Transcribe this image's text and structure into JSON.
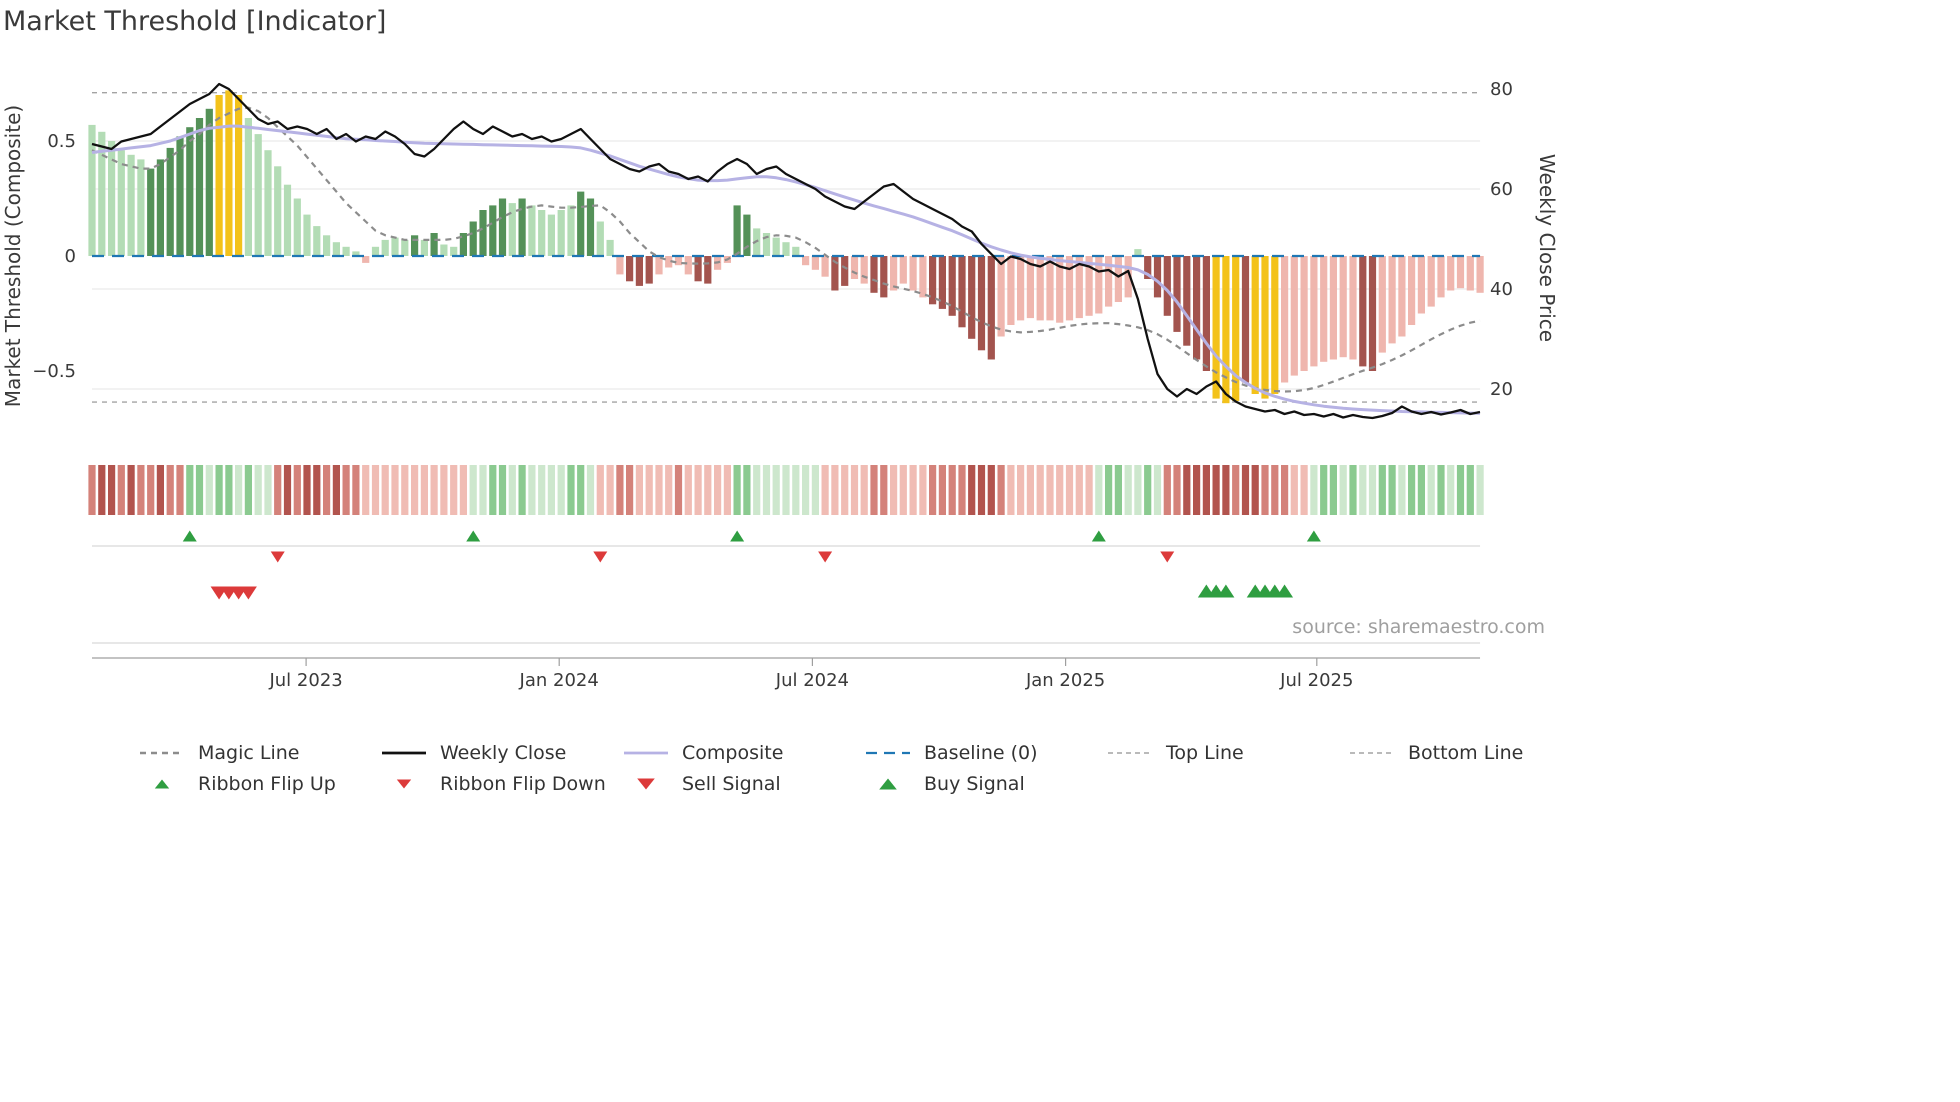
{
  "title": "Market Threshold [Indicator]",
  "source": "source: sharemaestro.com",
  "axes": {
    "left_label": "Market Threshold (Composite)",
    "right_label": "Weekly Close Price",
    "left_ticks": [
      {
        "v": 0.5,
        "label": "0.5"
      },
      {
        "v": 0.0,
        "label": "0"
      },
      {
        "v": -0.5,
        "label": "−0.5"
      }
    ],
    "right_ticks": [
      {
        "v": 80,
        "label": "80"
      },
      {
        "v": 60,
        "label": "60"
      },
      {
        "v": 40,
        "label": "40"
      },
      {
        "v": 20,
        "label": "20"
      }
    ],
    "x_ticks": [
      {
        "week": 21.9,
        "label": "Jul 2023"
      },
      {
        "week": 47.8,
        "label": "Jan 2024"
      },
      {
        "week": 73.7,
        "label": "Jul 2024"
      },
      {
        "week": 99.6,
        "label": "Jan 2025"
      },
      {
        "week": 125.3,
        "label": "Jul 2025"
      }
    ]
  },
  "colors": {
    "bars": {
      "lg": "#b3dcb5",
      "dg": "#549158",
      "au": "#f3c21a",
      "lr": "#efb6ae",
      "dr": "#a3544e"
    },
    "ribbon": {
      "r1": "#f0bcb4",
      "r2": "#d4827a",
      "r3": "#b2544e",
      "g1": "#cde7cd",
      "g2": "#8bca90"
    },
    "close": "#111111",
    "composite": "#b6b2e4",
    "magic": "#8c8c8c",
    "baseline": "#1f77b4",
    "ref_line": "#a3a3a3",
    "grid": "#ebebeb",
    "tri_green": "#2f9e41",
    "tri_red": "#dc3a3a"
  },
  "chart_data": {
    "type": "bar+line",
    "x_unit": "weeks",
    "title": "Market Threshold [Indicator]",
    "left_ylim": [
      -0.8,
      0.82
    ],
    "right_ylim": [
      7,
      84
    ],
    "grid": "horizontal-light",
    "reference_lines": {
      "baseline": 0,
      "top_line": 0.71,
      "bottom_line": -0.635
    },
    "threshold_bars": {
      "values": [
        0.57,
        0.54,
        0.5,
        0.46,
        0.44,
        0.42,
        0.38,
        0.42,
        0.47,
        0.52,
        0.56,
        0.6,
        0.64,
        0.7,
        0.72,
        0.7,
        0.6,
        0.53,
        0.46,
        0.39,
        0.31,
        0.25,
        0.18,
        0.13,
        0.09,
        0.06,
        0.04,
        0.02,
        -0.03,
        0.04,
        0.07,
        0.08,
        0.07,
        0.09,
        0.07,
        0.1,
        0.05,
        0.04,
        0.1,
        0.15,
        0.2,
        0.22,
        0.25,
        0.23,
        0.25,
        0.22,
        0.2,
        0.18,
        0.2,
        0.22,
        0.28,
        0.25,
        0.15,
        0.07,
        -0.08,
        -0.11,
        -0.13,
        -0.12,
        -0.08,
        -0.05,
        -0.04,
        -0.08,
        -0.11,
        -0.12,
        -0.06,
        -0.03,
        0.22,
        0.18,
        0.12,
        0.1,
        0.08,
        0.06,
        0.04,
        -0.04,
        -0.06,
        -0.09,
        -0.15,
        -0.13,
        -0.1,
        -0.12,
        -0.16,
        -0.18,
        -0.15,
        -0.12,
        -0.15,
        -0.18,
        -0.21,
        -0.23,
        -0.26,
        -0.31,
        -0.36,
        -0.41,
        -0.45,
        -0.35,
        -0.3,
        -0.28,
        -0.27,
        -0.28,
        -0.28,
        -0.29,
        -0.28,
        -0.27,
        -0.26,
        -0.25,
        -0.22,
        -0.2,
        -0.18,
        0.03,
        -0.1,
        -0.18,
        -0.26,
        -0.33,
        -0.39,
        -0.45,
        -0.5,
        -0.62,
        -0.64,
        -0.63,
        -0.55,
        -0.6,
        -0.62,
        -0.6,
        -0.55,
        -0.52,
        -0.5,
        -0.48,
        -0.46,
        -0.45,
        -0.44,
        -0.45,
        -0.48,
        -0.5,
        -0.42,
        -0.38,
        -0.35,
        -0.3,
        -0.25,
        -0.22,
        -0.18,
        -0.15,
        -0.14,
        -0.15,
        -0.16
      ],
      "colors": [
        "lg",
        "lg",
        "lg",
        "lg",
        "lg",
        "lg",
        "dg",
        "dg",
        "dg",
        "dg",
        "dg",
        "dg",
        "dg",
        "au",
        "au",
        "au",
        "lg",
        "lg",
        "lg",
        "lg",
        "lg",
        "lg",
        "lg",
        "lg",
        "lg",
        "lg",
        "lg",
        "lg",
        "lr",
        "lg",
        "lg",
        "lg",
        "lg",
        "dg",
        "lg",
        "dg",
        "lg",
        "lg",
        "dg",
        "dg",
        "dg",
        "dg",
        "dg",
        "lg",
        "dg",
        "lg",
        "lg",
        "lg",
        "lg",
        "lg",
        "dg",
        "dg",
        "lg",
        "lg",
        "lr",
        "dr",
        "dr",
        "dr",
        "lr",
        "lr",
        "lr",
        "lr",
        "dr",
        "dr",
        "lr",
        "lr",
        "dg",
        "dg",
        "lg",
        "lg",
        "lg",
        "lg",
        "lg",
        "lr",
        "lr",
        "lr",
        "dr",
        "dr",
        "lr",
        "lr",
        "dr",
        "dr",
        "lr",
        "lr",
        "lr",
        "lr",
        "dr",
        "dr",
        "dr",
        "dr",
        "dr",
        "dr",
        "dr",
        "lr",
        "lr",
        "lr",
        "lr",
        "lr",
        "lr",
        "lr",
        "lr",
        "lr",
        "lr",
        "lr",
        "lr",
        "lr",
        "lr",
        "lg",
        "dr",
        "dr",
        "dr",
        "dr",
        "dr",
        "dr",
        "dr",
        "au",
        "au",
        "au",
        "dr",
        "au",
        "au",
        "au",
        "lr",
        "lr",
        "lr",
        "lr",
        "lr",
        "lr",
        "lr",
        "lr",
        "dr",
        "dr",
        "lr",
        "lr",
        "lr",
        "lr",
        "lr",
        "lr",
        "lr",
        "lr",
        "lr",
        "lr",
        "lr"
      ]
    },
    "weekly_close": [
      69,
      68.5,
      68,
      69.5,
      70,
      70.5,
      71,
      72.5,
      74,
      75.5,
      77,
      78,
      79,
      81,
      80,
      78,
      76,
      74,
      73,
      73.5,
      72,
      72.5,
      72,
      71,
      72,
      70,
      71,
      69.5,
      70.5,
      70,
      71.5,
      70.5,
      69,
      67,
      66.5,
      68,
      70,
      72,
      73.5,
      72,
      71,
      72.5,
      71.5,
      70.5,
      71,
      70,
      70.5,
      69.5,
      70,
      71,
      72,
      70,
      68,
      66,
      65,
      64,
      63.5,
      64.5,
      65,
      63.5,
      63,
      62,
      62.5,
      61.5,
      63.5,
      65,
      66,
      65,
      63,
      64,
      64.5,
      63,
      62,
      61,
      60,
      58.5,
      57.5,
      56.5,
      56,
      57.5,
      59,
      60.5,
      61,
      59.5,
      58,
      57,
      56,
      55,
      54,
      52.5,
      51.5,
      49,
      47,
      45,
      46.5,
      46,
      45,
      44.5,
      45.5,
      44.5,
      44,
      45,
      44.5,
      43.5,
      43.8,
      42.5,
      43.6,
      38,
      30,
      23,
      20,
      18.5,
      20,
      19,
      20.5,
      21.5,
      19,
      17.5,
      16.5,
      16,
      15.5,
      15.8,
      15,
      15.5,
      14.8,
      15,
      14.5,
      15,
      14.3,
      14.8,
      14.4,
      14.2,
      14.6,
      15.2,
      16.5,
      15.5,
      15,
      15.4,
      14.9,
      15.3,
      15.8,
      15,
      15.4
    ],
    "composite": [
      0.45,
      0.455,
      0.46,
      0.465,
      0.47,
      0.475,
      0.48,
      0.49,
      0.5,
      0.515,
      0.53,
      0.545,
      0.555,
      0.56,
      0.565,
      0.565,
      0.56,
      0.555,
      0.55,
      0.545,
      0.54,
      0.535,
      0.53,
      0.525,
      0.52,
      0.515,
      0.51,
      0.508,
      0.505,
      0.502,
      0.5,
      0.498,
      0.495,
      0.492,
      0.49,
      0.489,
      0.488,
      0.487,
      0.486,
      0.485,
      0.484,
      0.483,
      0.482,
      0.481,
      0.48,
      0.479,
      0.478,
      0.477,
      0.476,
      0.474,
      0.47,
      0.46,
      0.448,
      0.435,
      0.42,
      0.405,
      0.39,
      0.378,
      0.366,
      0.354,
      0.344,
      0.336,
      0.33,
      0.328,
      0.328,
      0.33,
      0.335,
      0.34,
      0.345,
      0.345,
      0.34,
      0.332,
      0.322,
      0.31,
      0.298,
      0.284,
      0.27,
      0.256,
      0.243,
      0.23,
      0.218,
      0.206,
      0.194,
      0.182,
      0.17,
      0.155,
      0.14,
      0.125,
      0.11,
      0.092,
      0.074,
      0.056,
      0.04,
      0.026,
      0.014,
      0.004,
      -0.004,
      -0.01,
      -0.015,
      -0.02,
      -0.024,
      -0.028,
      -0.032,
      -0.036,
      -0.04,
      -0.045,
      -0.05,
      -0.06,
      -0.08,
      -0.11,
      -0.15,
      -0.2,
      -0.26,
      -0.32,
      -0.38,
      -0.435,
      -0.48,
      -0.52,
      -0.55,
      -0.575,
      -0.595,
      -0.61,
      -0.622,
      -0.632,
      -0.64,
      -0.647,
      -0.653,
      -0.658,
      -0.662,
      -0.665,
      -0.668,
      -0.67,
      -0.672,
      -0.674,
      -0.676,
      -0.677,
      -0.678,
      -0.679,
      -0.68,
      -0.681,
      -0.682,
      -0.683,
      -0.684
    ],
    "magic_line": [
      0.46,
      0.44,
      0.42,
      0.4,
      0.39,
      0.38,
      0.38,
      0.4,
      0.43,
      0.46,
      0.5,
      0.53,
      0.57,
      0.6,
      0.62,
      0.64,
      0.645,
      0.63,
      0.6,
      0.56,
      0.52,
      0.48,
      0.43,
      0.38,
      0.33,
      0.28,
      0.23,
      0.19,
      0.15,
      0.11,
      0.09,
      0.08,
      0.07,
      0.07,
      0.07,
      0.07,
      0.07,
      0.075,
      0.085,
      0.1,
      0.12,
      0.145,
      0.17,
      0.19,
      0.205,
      0.215,
      0.22,
      0.215,
      0.21,
      0.21,
      0.213,
      0.218,
      0.22,
      0.19,
      0.15,
      0.1,
      0.06,
      0.02,
      -0.005,
      -0.02,
      -0.03,
      -0.032,
      -0.033,
      -0.032,
      -0.028,
      -0.015,
      0.01,
      0.04,
      0.065,
      0.082,
      0.09,
      0.088,
      0.08,
      0.06,
      0.035,
      0.005,
      -0.025,
      -0.05,
      -0.072,
      -0.09,
      -0.105,
      -0.12,
      -0.132,
      -0.142,
      -0.152,
      -0.165,
      -0.18,
      -0.198,
      -0.218,
      -0.242,
      -0.266,
      -0.288,
      -0.306,
      -0.32,
      -0.328,
      -0.332,
      -0.33,
      -0.326,
      -0.32,
      -0.312,
      -0.304,
      -0.298,
      -0.294,
      -0.292,
      -0.292,
      -0.296,
      -0.302,
      -0.31,
      -0.322,
      -0.34,
      -0.364,
      -0.392,
      -0.422,
      -0.452,
      -0.48,
      -0.506,
      -0.528,
      -0.548,
      -0.563,
      -0.574,
      -0.582,
      -0.587,
      -0.589,
      -0.588,
      -0.583,
      -0.574,
      -0.561,
      -0.546,
      -0.53,
      -0.514,
      -0.499,
      -0.485,
      -0.47,
      -0.452,
      -0.432,
      -0.41,
      -0.386,
      -0.362,
      -0.34,
      -0.32,
      -0.303,
      -0.29,
      -0.281
    ],
    "ribbon": [
      "r2",
      "r3",
      "r3",
      "r2",
      "r3",
      "r2",
      "r2",
      "r3",
      "r2",
      "r2",
      "g2",
      "g2",
      "g1",
      "g2",
      "g2",
      "g1",
      "g2",
      "g1",
      "g1",
      "r2",
      "r3",
      "r2",
      "r3",
      "r3",
      "r2",
      "r3",
      "r2",
      "r2",
      "r1",
      "r1",
      "r1",
      "r1",
      "r1",
      "r1",
      "r1",
      "r1",
      "r1",
      "r1",
      "r1",
      "g1",
      "g1",
      "g2",
      "g2",
      "g1",
      "g2",
      "g1",
      "g1",
      "g1",
      "g1",
      "g2",
      "g2",
      "g1",
      "r1",
      "r1",
      "r2",
      "r2",
      "r1",
      "r1",
      "r1",
      "r1",
      "r2",
      "r1",
      "r1",
      "r1",
      "r1",
      "r1",
      "g2",
      "g2",
      "g1",
      "g1",
      "g1",
      "g1",
      "g1",
      "g1",
      "g1",
      "r1",
      "r1",
      "r1",
      "r1",
      "r1",
      "r2",
      "r2",
      "r1",
      "r1",
      "r1",
      "r1",
      "r2",
      "r2",
      "r2",
      "r2",
      "r3",
      "r3",
      "r3",
      "r2",
      "r1",
      "r1",
      "r1",
      "r1",
      "r1",
      "r1",
      "r1",
      "r1",
      "r1",
      "g1",
      "g2",
      "g2",
      "g1",
      "g1",
      "g2",
      "g1",
      "r2",
      "r2",
      "r3",
      "r3",
      "r3",
      "r3",
      "r3",
      "r2",
      "r3",
      "r3",
      "r2",
      "r2",
      "r2",
      "r1",
      "r1",
      "g1",
      "g2",
      "g2",
      "g1",
      "g2",
      "g1",
      "g1",
      "g2",
      "g2",
      "g1",
      "g2",
      "g2",
      "g1",
      "g2",
      "g1",
      "g2",
      "g2",
      "g1"
    ],
    "signals": {
      "ribbon_flip_up": [
        10,
        39,
        66,
        103,
        125
      ],
      "ribbon_flip_down": [
        19,
        52,
        75,
        110
      ],
      "sell": [
        13,
        14,
        15,
        16
      ],
      "buy": [
        114,
        115,
        116,
        119,
        120,
        121,
        122
      ]
    }
  },
  "legend": {
    "rows": [
      [
        {
          "label": "Magic Line",
          "sample": {
            "kind": "line",
            "color": "#8c8c8c",
            "width": 2.5,
            "dash": "6 5"
          }
        },
        {
          "label": "Weekly Close",
          "sample": {
            "kind": "line",
            "color": "#111111",
            "width": 2.8,
            "dash": ""
          }
        },
        {
          "label": "Composite",
          "sample": {
            "kind": "line",
            "color": "#b6b2e4",
            "width": 2.8,
            "dash": ""
          }
        },
        {
          "label": "Baseline (0)",
          "sample": {
            "kind": "line",
            "color": "#1f77b4",
            "width": 2.2,
            "dash": "11 7"
          }
        },
        {
          "label": "Top Line",
          "sample": {
            "kind": "line",
            "color": "#a3a3a3",
            "width": 1.6,
            "dash": "5 4"
          }
        },
        {
          "label": "Bottom Line",
          "sample": {
            "kind": "line",
            "color": "#a3a3a3",
            "width": 1.6,
            "dash": "5 4"
          }
        }
      ],
      [
        {
          "label": "Ribbon Flip Up",
          "sample": {
            "kind": "tri-up",
            "color": "#2f9e41",
            "size": 9
          }
        },
        {
          "label": "Ribbon Flip Down",
          "sample": {
            "kind": "tri-down",
            "color": "#dc3a3a",
            "size": 9
          }
        },
        {
          "label": "Sell Signal",
          "sample": {
            "kind": "tri-down",
            "color": "#dc3a3a",
            "size": 11
          }
        },
        {
          "label": "Buy Signal",
          "sample": {
            "kind": "tri-up",
            "color": "#2f9e41",
            "size": 11
          }
        }
      ]
    ]
  }
}
